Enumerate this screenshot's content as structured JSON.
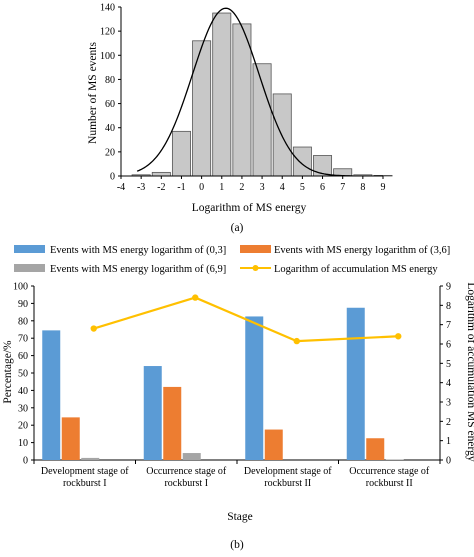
{
  "chart_data": [
    {
      "type": "bar",
      "panel_caption": "(a)",
      "xlabel": "Logarithm of MS energy",
      "ylabel": "Number of MS events",
      "xlim": [
        -4,
        9
      ],
      "ylim": [
        0,
        140
      ],
      "x_ticks": [
        "-4",
        "-3",
        "-2",
        "-1",
        "0",
        "1",
        "2",
        "3",
        "4",
        "5",
        "6",
        "7",
        "8",
        "9"
      ],
      "y_ticks": [
        "0",
        "20",
        "40",
        "60",
        "80",
        "100",
        "120",
        "140"
      ],
      "bins": [
        {
          "from": -3.5,
          "to": -2.5,
          "value": 1
        },
        {
          "from": -2.5,
          "to": -1.5,
          "value": 3
        },
        {
          "from": -1.5,
          "to": -0.5,
          "value": 37
        },
        {
          "from": -0.5,
          "to": 0.5,
          "value": 112
        },
        {
          "from": 0.5,
          "to": 1.5,
          "value": 135
        },
        {
          "from": 1.5,
          "to": 2.5,
          "value": 126
        },
        {
          "from": 2.5,
          "to": 3.5,
          "value": 93
        },
        {
          "from": 3.5,
          "to": 4.5,
          "value": 68
        },
        {
          "from": 4.5,
          "to": 5.5,
          "value": 24
        },
        {
          "from": 5.5,
          "to": 6.5,
          "value": 17
        },
        {
          "from": 6.5,
          "to": 7.5,
          "value": 6
        },
        {
          "from": 7.5,
          "to": 8.5,
          "value": 1
        },
        {
          "from": 8.5,
          "to": 9.5,
          "value": 0.5
        }
      ],
      "fit_curve": {
        "type": "normal",
        "mean": 1.2,
        "std": 1.65,
        "peak": 139,
        "x_range": [
          -3.2,
          7.5
        ]
      },
      "colors": {
        "bar_fill": "#c8c8c8",
        "bar_stroke": "#555555",
        "curve": "#000000"
      }
    },
    {
      "type": "bar",
      "panel_caption": "(b)",
      "xlabel": "Stage",
      "ylabel": "Percentage/%",
      "y2label": "Logarithm of accumulation MS energy",
      "ylim": [
        0,
        100
      ],
      "y2lim": [
        0,
        9
      ],
      "y_ticks": [
        "0",
        "10",
        "20",
        "30",
        "40",
        "50",
        "60",
        "70",
        "80",
        "90",
        "100"
      ],
      "y2_ticks": [
        "0",
        "1",
        "2",
        "3",
        "4",
        "5",
        "6",
        "7",
        "8",
        "9"
      ],
      "categories": [
        [
          "Development stage of",
          "rockburst I"
        ],
        [
          "Occurrence stage of",
          "rockburst I"
        ],
        [
          "Development stage of",
          "rockburst II"
        ],
        [
          "Occurrence stage of",
          "rockburst II"
        ]
      ],
      "series": [
        {
          "name": "Events with MS energy logarithm of (0,3]",
          "color": "#5b9bd5",
          "values": [
            74.5,
            54,
            82.5,
            87.5
          ]
        },
        {
          "name": "Events with MS energy logarithm of (3,6]",
          "color": "#ed7d31",
          "values": [
            24.5,
            42,
            17.5,
            12.5
          ]
        },
        {
          "name": "Events with MS energy logarithm of (6,9]",
          "color": "#a5a5a5",
          "values": [
            1.2,
            4,
            0,
            0.3
          ]
        }
      ],
      "line_series": {
        "name": "Logarithm of accumulation MS energy",
        "color": "#ffc000",
        "axis": "right",
        "values": [
          6.8,
          8.4,
          6.15,
          6.4
        ]
      },
      "legend_position": "top"
    }
  ]
}
